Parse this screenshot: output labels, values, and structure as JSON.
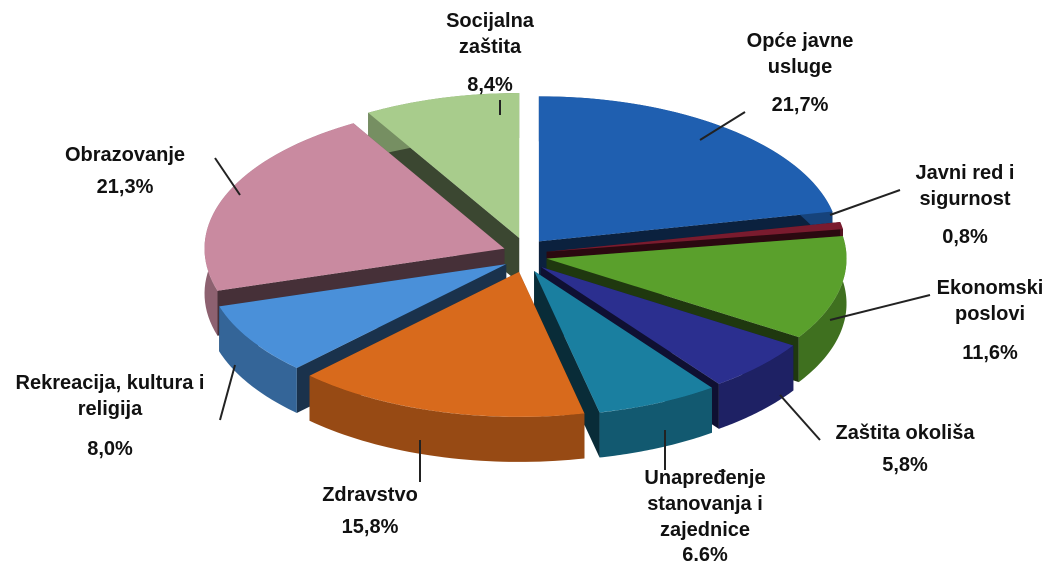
{
  "chart_data": {
    "type": "pie",
    "categories": [
      "Opće javne usluge",
      "Javni red i sigurnost",
      "Ekonomski poslovi",
      "Zaštita okoliša",
      "Unapređenje stanovanja i zajednice",
      "Zdravstvo",
      "Rekreacija, kultura i religija",
      "Obrazovanje",
      "Socijalna zaštita"
    ],
    "values": [
      21.7,
      0.8,
      11.6,
      5.8,
      6.6,
      15.8,
      8.0,
      21.3,
      8.4
    ],
    "value_labels": [
      "21,7%",
      "0,8%",
      "11,6%",
      "5,8%",
      "6.6%",
      "15,8%",
      "8,0%",
      "21,3%",
      "8,4%"
    ],
    "colors": [
      "#1f5fb0",
      "#7a1b2e",
      "#5aa02c",
      "#2b2f8f",
      "#1a7fa0",
      "#d86a1c",
      "#4a90d9",
      "#c98aa0",
      "#a8cc8c"
    ]
  }
}
